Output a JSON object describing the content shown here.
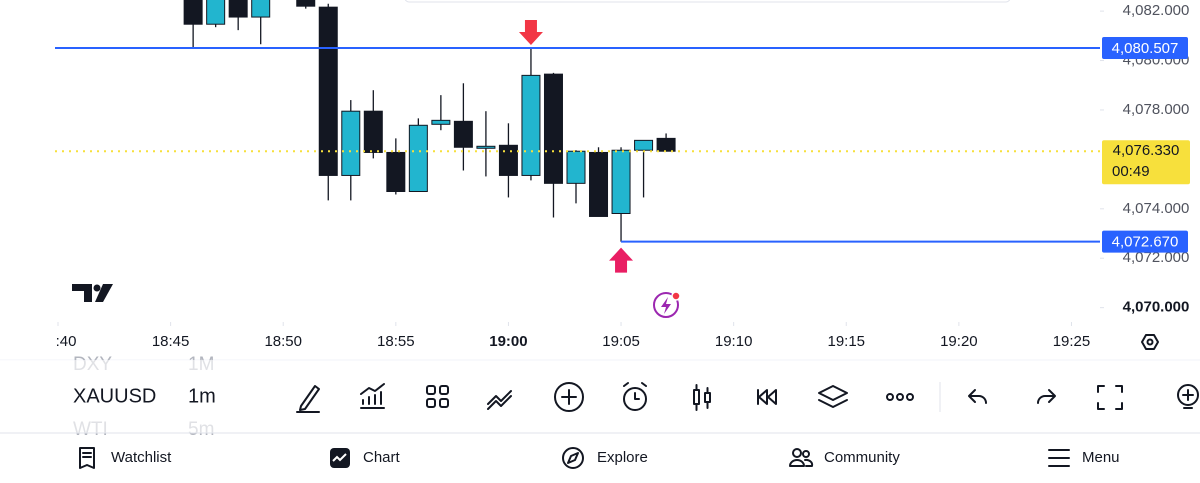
{
  "chart_data": {
    "type": "candlestick",
    "x": [
      "18:46",
      "18:47",
      "18:48",
      "18:49",
      "18:51",
      "18:52",
      "18:53",
      "18:54",
      "18:55",
      "18:56",
      "18:57",
      "18:58",
      "18:59",
      "19:00",
      "19:01",
      "19:02",
      "19:03",
      "19:04",
      "19:05",
      "19:06",
      "19:07"
    ],
    "open": [
      4082.8,
      4081.47,
      4082.9,
      4081.76,
      4082.5,
      4082.16,
      4075.35,
      4077.95,
      4076.28,
      4074.7,
      4077.42,
      4077.54,
      4076.49,
      4076.57,
      4075.35,
      4079.45,
      4075.03,
      4076.28,
      4073.81,
      4076.37,
      4076.85
    ],
    "high": [
      4083.0,
      4083.1,
      4083.2,
      4083.2,
      4082.6,
      4082.3,
      4078.4,
      4078.8,
      4076.85,
      4077.66,
      4078.6,
      4079.08,
      4077.95,
      4077.46,
      4080.507,
      4079.5,
      4076.37,
      4076.49,
      4076.49,
      4076.77,
      4077.05
    ],
    "low": [
      4080.5,
      4081.35,
      4081.23,
      4080.66,
      4082.1,
      4074.34,
      4074.34,
      4076.04,
      4074.58,
      4074.7,
      4077.18,
      4075.55,
      4075.31,
      4074.46,
      4075.15,
      4073.65,
      4074.22,
      4073.69,
      4072.67,
      4074.46,
      4076.33
    ],
    "close": [
      4081.47,
      4082.9,
      4081.76,
      4082.9,
      4082.2,
      4075.35,
      4077.95,
      4076.28,
      4074.7,
      4077.38,
      4077.58,
      4076.49,
      4076.53,
      4075.35,
      4079.4,
      4075.03,
      4076.33,
      4073.69,
      4076.37,
      4076.77,
      4076.33
    ],
    "up_color": "#22b5cf",
    "down_color": "#131722",
    "xlim": [
      "18:40",
      "19:26"
    ],
    "xticks": [
      {
        "value": "18:40",
        "label": ":40"
      },
      "18:45",
      "18:50",
      "18:55",
      {
        "value": "19:00",
        "label": "19:00",
        "bold": true
      },
      "19:05",
      "19:10",
      "19:15",
      "19:20",
      "19:25"
    ],
    "ylim": [
      4069.5,
      4082.45
    ],
    "yticks": [
      {
        "value": 4082,
        "label": "4,082.000"
      },
      {
        "value": 4080,
        "label": "4,080.000"
      },
      {
        "value": 4078,
        "label": "4,078.000"
      },
      {
        "value": 4074,
        "label": "4,074.000"
      },
      {
        "value": 4072,
        "label": "4,072.000"
      },
      {
        "value": 4070,
        "label": "4,070.000",
        "bold": true
      }
    ],
    "hlines": [
      {
        "value": 4080.507,
        "label": "4,080.507",
        "color": "#2962ff"
      },
      {
        "value": 4072.67,
        "label": "4,072.670",
        "color": "#2962ff"
      }
    ],
    "last_price": {
      "value": 4076.33,
      "label": "4,076.330",
      "countdown": "00:49",
      "color": "#f7e03c"
    }
  },
  "toolbar": {
    "symbols": [
      {
        "symbol": "DXY",
        "interval": "1M"
      },
      {
        "symbol": "XAUUSD",
        "interval": "1m"
      },
      {
        "symbol": "WTI",
        "interval": "5m"
      }
    ]
  },
  "nav": [
    "Watchlist",
    "Chart",
    "Explore",
    "Community",
    "Menu"
  ]
}
